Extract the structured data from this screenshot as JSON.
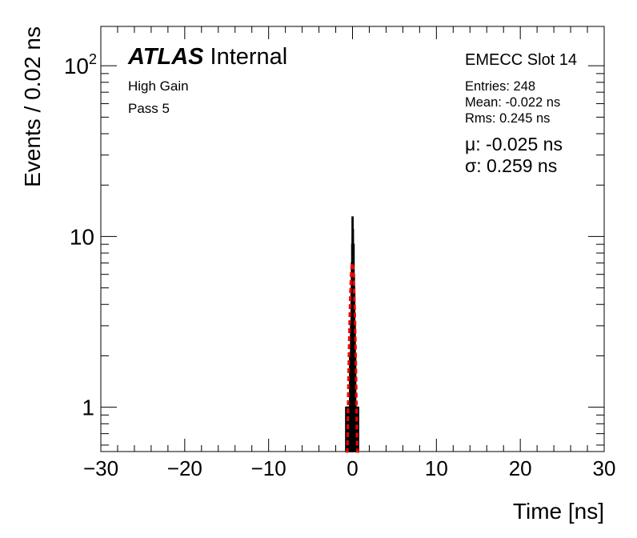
{
  "chart_data": {
    "type": "bar",
    "histtype": "step",
    "xlabel": "Time [ns]",
    "ylabel": "Events / 0.02 ns",
    "xlim": [
      -30,
      30
    ],
    "ylim": [
      0.55,
      170
    ],
    "yscale": "log",
    "x_ticks": [
      -30,
      -20,
      -10,
      0,
      10,
      20,
      30
    ],
    "x_tick_labels": [
      "−30",
      "−20",
      "−10",
      "0",
      "10",
      "20",
      "30"
    ],
    "y_tick_labels": [
      {
        "base": "10",
        "exp": "2",
        "value": 100
      },
      {
        "base": "10",
        "exp": "",
        "value": 10
      },
      {
        "base": "1",
        "exp": "",
        "value": 1
      }
    ],
    "bin_width": 0.02,
    "bins": [
      {
        "x": -0.8,
        "y": 1
      },
      {
        "x": -0.7,
        "y": 1
      },
      {
        "x": -0.6,
        "y": 1
      },
      {
        "x": -0.5,
        "y": 1
      },
      {
        "x": -0.42,
        "y": 1
      },
      {
        "x": -0.34,
        "y": 2
      },
      {
        "x": -0.28,
        "y": 1
      },
      {
        "x": -0.22,
        "y": 3
      },
      {
        "x": -0.16,
        "y": 5
      },
      {
        "x": -0.12,
        "y": 7
      },
      {
        "x": -0.08,
        "y": 9
      },
      {
        "x": -0.04,
        "y": 13
      },
      {
        "x": -0.02,
        "y": 10
      },
      {
        "x": 0.0,
        "y": 11
      },
      {
        "x": 0.04,
        "y": 8
      },
      {
        "x": 0.08,
        "y": 9
      },
      {
        "x": 0.12,
        "y": 6
      },
      {
        "x": 0.16,
        "y": 5
      },
      {
        "x": 0.22,
        "y": 3
      },
      {
        "x": 0.28,
        "y": 2
      },
      {
        "x": 0.34,
        "y": 1
      },
      {
        "x": 0.42,
        "y": 1
      },
      {
        "x": 0.52,
        "y": 1
      },
      {
        "x": 0.62,
        "y": 1
      }
    ],
    "fit": {
      "type": "gaussian",
      "color": "#ff0000",
      "style": "dashed",
      "amplitude": 7.0,
      "mean": -0.025,
      "sigma": 0.259,
      "range": [
        -0.8,
        0.8
      ]
    },
    "histogram_color": "#000000"
  },
  "atlas": {
    "bold": "ATLAS",
    "status": "Internal"
  },
  "labels": {
    "gain": "High Gain",
    "pass": "Pass 5",
    "slot": "EMECC Slot 14",
    "entries": "Entries: 248",
    "mean": "Mean: -0.022 ns",
    "rms": "Rms: 0.245 ns",
    "mu_symbol": "μ",
    "mu_value": ": -0.025 ns",
    "sigma_symbol": "σ",
    "sigma_value": ": 0.259 ns"
  }
}
